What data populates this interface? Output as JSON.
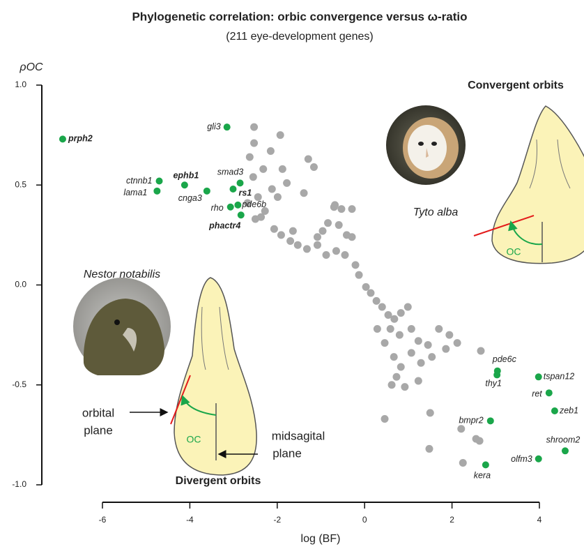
{
  "chart_data": {
    "type": "scatter",
    "title": "Phylogenetic correlation: orbic convergence versus ω-ratio",
    "subtitle": "(211 eye-development genes)",
    "y_label": "ρOC",
    "x_label": "log (BF)",
    "xlim": [
      -6,
      4
    ],
    "xticks": [
      -6,
      -4,
      -2,
      0,
      2,
      4
    ],
    "ylim": [
      -1,
      1
    ],
    "yticks": [
      {
        "value": 1,
        "label": "1.0"
      },
      {
        "value": 0.5,
        "label": "0.5"
      },
      {
        "value": 0,
        "label": "0.0"
      },
      {
        "value": -0.5,
        "label": "-0.5"
      },
      {
        "value": -1,
        "label": "-1.0"
      }
    ],
    "series": [
      {
        "color": "#a8a8a8",
        "x": [
          -2.53,
          -1.93,
          -2.53,
          -2.15,
          -2.63,
          -1.29,
          -2.32,
          -1.88,
          -2.55,
          -2.12,
          -1.78,
          -2.44,
          -1.99,
          -2.68,
          -2.28,
          -2.5,
          -2.37,
          -1.16,
          -1.39,
          -0.68,
          -1.91,
          -1.7,
          -1.53,
          -1.32,
          -1.08,
          -0.96,
          -0.84,
          -0.7,
          -0.59,
          -0.41,
          -0.29,
          -1.08,
          -0.88,
          -0.65,
          -0.45,
          -0.21,
          -0.13,
          0.03,
          0.14,
          0.27,
          0.4,
          0.54,
          0.68,
          0.83,
          0.99,
          0.59,
          0.8,
          1.07,
          1.23,
          1.45,
          1.7,
          1.94,
          2.12,
          0.29,
          0.46,
          0.67,
          0.83,
          0.73,
          0.62,
          1.07,
          1.29,
          1.54,
          1.86,
          2.66,
          1.23,
          0.92,
          0.46,
          1.5,
          2.55,
          2.63,
          1.48,
          2.25,
          2.21,
          -1.64,
          -2.07,
          -0.29,
          -0.53
        ],
        "values": [
          0.79,
          0.75,
          0.71,
          0.67,
          0.64,
          0.63,
          0.58,
          0.58,
          0.54,
          0.48,
          0.51,
          0.44,
          0.44,
          0.41,
          0.37,
          0.33,
          0.34,
          0.59,
          0.46,
          0.4,
          0.25,
          0.22,
          0.2,
          0.18,
          0.2,
          0.27,
          0.31,
          0.39,
          0.3,
          0.25,
          0.24,
          0.24,
          0.15,
          0.17,
          0.15,
          0.1,
          0.05,
          -0.01,
          -0.04,
          -0.08,
          -0.11,
          -0.15,
          -0.17,
          -0.14,
          -0.11,
          -0.22,
          -0.25,
          -0.22,
          -0.28,
          -0.3,
          -0.22,
          -0.25,
          -0.29,
          -0.22,
          -0.29,
          -0.36,
          -0.41,
          -0.46,
          -0.5,
          -0.34,
          -0.39,
          -0.36,
          -0.32,
          -0.33,
          -0.48,
          -0.51,
          -0.67,
          -0.64,
          -0.77,
          -0.78,
          -0.82,
          -0.89,
          -0.72,
          0.27,
          0.28,
          0.38,
          0.38
        ]
      },
      {
        "color": "#1aa64a",
        "labels": [
          "prph2",
          "gli3",
          "ctnnb1",
          "lama1",
          "ephb1",
          "cnga3",
          "smad3",
          "rs1",
          "rho",
          "pde6b",
          "phactr4",
          "pde6c",
          "thy1",
          "tspan12",
          "ret",
          "zeb1",
          "bmpr2",
          "shroom2",
          "olfm3",
          "kera"
        ],
        "bold": [
          true,
          false,
          false,
          false,
          true,
          false,
          false,
          true,
          false,
          false,
          true,
          false,
          false,
          false,
          false,
          false,
          false,
          false,
          false,
          false
        ],
        "x": [
          -6.91,
          -3.15,
          -4.7,
          -4.75,
          -4.12,
          -3.61,
          -2.85,
          -3.01,
          -3.07,
          -2.9,
          -2.83,
          3.04,
          3.03,
          3.98,
          4.22,
          4.35,
          2.88,
          4.59,
          3.98,
          2.77
        ],
        "values": [
          0.73,
          0.79,
          0.52,
          0.47,
          0.5,
          0.47,
          0.51,
          0.48,
          0.39,
          0.4,
          0.35,
          -0.43,
          -0.45,
          -0.46,
          -0.54,
          -0.63,
          -0.68,
          -0.83,
          -0.87,
          -0.9
        ]
      }
    ],
    "annotations": {
      "convergent": "Convergent orbits",
      "tyto": "Tyto alba",
      "nestor": "Nestor notabilis",
      "orbital_plane": [
        "orbital",
        "plane"
      ],
      "midsagital_plane": [
        "midsagital",
        "plane"
      ],
      "oc_left": "OC",
      "oc_right": "OC",
      "divergent": "Divergent orbits"
    }
  }
}
